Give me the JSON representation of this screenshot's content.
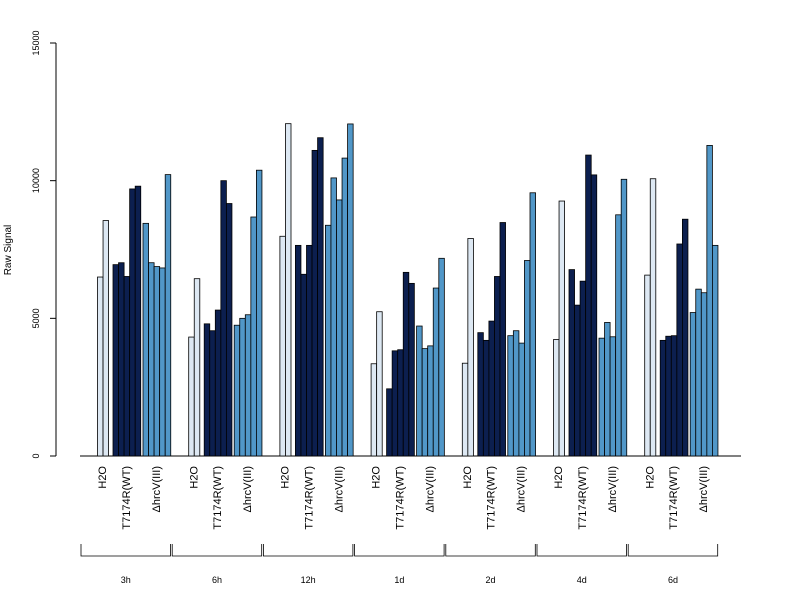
{
  "chart_data": {
    "type": "bar",
    "title": "",
    "xlabel": "",
    "ylabel": "Raw Signal",
    "ylim": [
      0,
      15000
    ],
    "yticks": [
      0,
      5000,
      10000,
      15000
    ],
    "grid": false,
    "legend": "none",
    "colors": {
      "H2O": "#dde8f3",
      "T7174R(WT)": "#0c1f4f",
      "ΔhrcV(III)": "#5197c8"
    },
    "groups": [
      {
        "label": "3h",
        "categories": [
          {
            "name": "H2O",
            "values": [
              6500,
              8550
            ]
          },
          {
            "name": "T7174R(WT)",
            "values": [
              6950,
              7020,
              6520,
              9700,
              9800
            ]
          },
          {
            "name": "ΔhrcV(III)",
            "values": [
              8450,
              7020,
              6880,
              6830,
              10220
            ]
          }
        ]
      },
      {
        "label": "6h",
        "categories": [
          {
            "name": "H2O",
            "values": [
              4320,
              6440
            ]
          },
          {
            "name": "T7174R(WT)",
            "values": [
              4800,
              4550,
              5300,
              10000,
              9170
            ]
          },
          {
            "name": "ΔhrcV(III)",
            "values": [
              4750,
              5000,
              5130,
              8680,
              10380
            ]
          }
        ]
      },
      {
        "label": "12h",
        "categories": [
          {
            "name": "H2O",
            "values": [
              7980,
              12070
            ]
          },
          {
            "name": "T7174R(WT)",
            "values": [
              7650,
              6600,
              7650,
              11100,
              11560
            ]
          },
          {
            "name": "ΔhrcV(III)",
            "values": [
              8380,
              10100,
              9300,
              10820,
              12060
            ]
          }
        ]
      },
      {
        "label": "1d",
        "categories": [
          {
            "name": "H2O",
            "values": [
              3350,
              5240
            ]
          },
          {
            "name": "T7174R(WT)",
            "values": [
              2440,
              3820,
              3860,
              6670,
              6270
            ]
          },
          {
            "name": "ΔhrcV(III)",
            "values": [
              4720,
              3900,
              4000,
              6100,
              7180
            ]
          }
        ]
      },
      {
        "label": "2d",
        "categories": [
          {
            "name": "H2O",
            "values": [
              3370,
              7900
            ]
          },
          {
            "name": "T7174R(WT)",
            "values": [
              4480,
              4200,
              4900,
              6520,
              8480
            ]
          },
          {
            "name": "ΔhrcV(III)",
            "values": [
              4370,
              4550,
              4100,
              7100,
              9560
            ]
          }
        ]
      },
      {
        "label": "4d",
        "categories": [
          {
            "name": "H2O",
            "values": [
              4230,
              9260
            ]
          },
          {
            "name": "T7174R(WT)",
            "values": [
              6770,
              5480,
              6350,
              10930,
              10210
            ]
          },
          {
            "name": "ΔhrcV(III)",
            "values": [
              4280,
              4850,
              4330,
              8760,
              10050
            ]
          }
        ]
      },
      {
        "label": "6d",
        "categories": [
          {
            "name": "H2O",
            "values": [
              6570,
              10070
            ]
          },
          {
            "name": "T7174R(WT)",
            "values": [
              4200,
              4350,
              4370,
              7700,
              8600
            ]
          },
          {
            "name": "ΔhrcV(III)",
            "values": [
              5210,
              6060,
              5930,
              11280,
              7650
            ]
          }
        ]
      }
    ]
  }
}
